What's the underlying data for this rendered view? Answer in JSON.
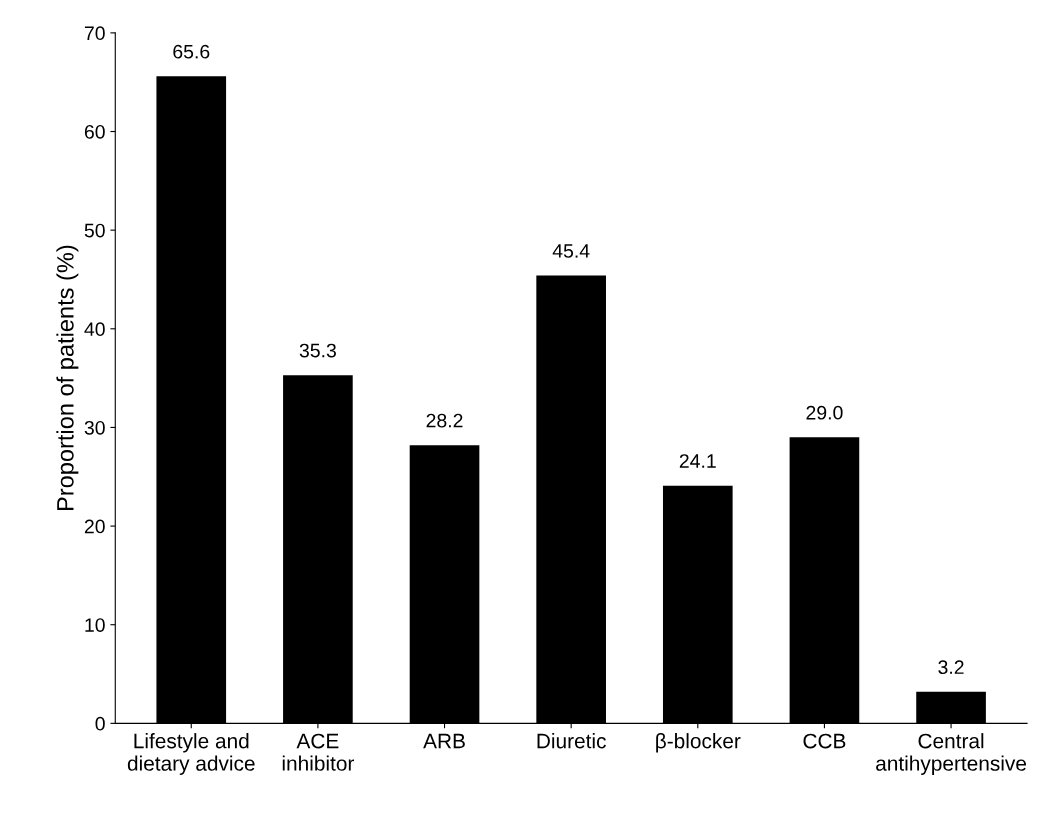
{
  "chart_data": {
    "type": "bar",
    "categories": [
      "Lifestyle and\ndietary advice",
      "ACE\ninhibitor",
      "ARB",
      "Diuretic",
      "β-blocker",
      "CCB",
      "Central\nantihypertensive"
    ],
    "values": [
      65.6,
      35.3,
      28.2,
      45.4,
      24.1,
      29.0,
      3.2
    ],
    "value_labels": [
      "65.6",
      "35.3",
      "28.2",
      "45.4",
      "24.1",
      "29.0",
      "3.2"
    ],
    "color": "#000000",
    "ylabel": "Proportion of patients (%)",
    "ylim": [
      0,
      70
    ],
    "yticks": [
      0,
      10,
      20,
      30,
      40,
      50,
      60,
      70
    ],
    "grid": false
  }
}
